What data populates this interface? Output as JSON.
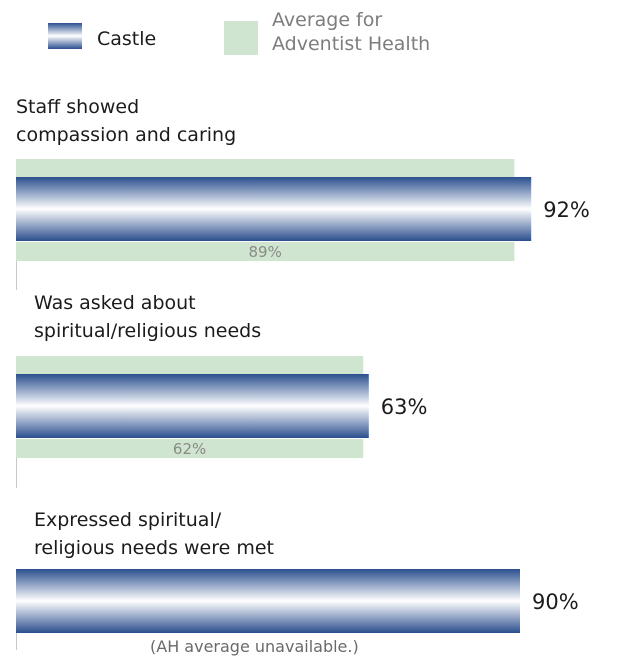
{
  "legend": {
    "series_a": {
      "name": "Castle"
    },
    "series_b": {
      "name_line1": "Average for",
      "name_line2": "Adventist Health"
    }
  },
  "colors": {
    "castle_dark": "#2b4f8e",
    "castle_light": "#ffffff",
    "average": "#cfe5cf",
    "avg_text": "#8a8a8a",
    "legend_b_text": "#7d7d7d",
    "divider": "#c8c8c8"
  },
  "categories": [
    {
      "line1": "Staff showed",
      "line2": "compassion and caring"
    },
    {
      "line1": "Was asked about",
      "line2": "spiritual/religious needs"
    },
    {
      "line1": "Expressed spiritual/",
      "line2": "religious needs were met"
    }
  ],
  "note": "(AH average unavailable.)",
  "chart_data": {
    "type": "bar",
    "orientation": "horizontal",
    "categories": [
      "Staff showed compassion and caring",
      "Was asked about spiritual/religious needs",
      "Expressed spiritual/religious needs were met"
    ],
    "series": [
      {
        "name": "Castle",
        "values": [
          92,
          63,
          90
        ],
        "labels": [
          "92%",
          "63%",
          "90%"
        ]
      },
      {
        "name": "Average for Adventist Health",
        "values": [
          89,
          62,
          null
        ],
        "labels": [
          "89%",
          "62%",
          ""
        ]
      }
    ],
    "xlim": [
      0,
      100
    ],
    "unit": "%",
    "grid": false,
    "legend_position": "top-left"
  }
}
